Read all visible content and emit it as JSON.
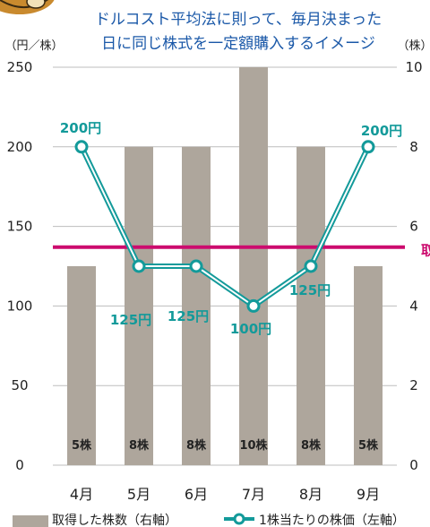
{
  "title_lines": [
    "ドルコスト平均法に則って、毎月決まった",
    "日に同じ株式を一定額購入するイメージ"
  ],
  "reference_line_label": "取",
  "chart_data": {
    "type": "bar",
    "categories": [
      "4月",
      "5月",
      "6月",
      "7月",
      "8月",
      "9月"
    ],
    "series": [
      {
        "name": "取得した株数（右軸）",
        "type": "bar",
        "axis": "right",
        "values": [
          5,
          8,
          8,
          10,
          8,
          5
        ],
        "labels": [
          "5株",
          "8株",
          "8株",
          "10株",
          "8株",
          "5株"
        ],
        "color": "#aea69c"
      },
      {
        "name": "1株当たりの株価（左軸）",
        "type": "line",
        "axis": "left",
        "values": [
          200,
          125,
          125,
          100,
          125,
          200
        ],
        "labels": [
          "200円",
          "125円",
          "125円",
          "100円",
          "125円",
          "200円"
        ],
        "color": "#139a9a"
      }
    ],
    "reference_line": {
      "value": 137,
      "axis": "left",
      "color": "#cc0b6e"
    },
    "y_left": {
      "label": "（円／株）",
      "ylim": [
        0,
        250
      ],
      "ticks": [
        "0",
        "50",
        "100",
        "150",
        "200",
        "250"
      ]
    },
    "y_right": {
      "label": "（株）",
      "ylim": [
        0,
        10
      ],
      "ticks": [
        "0",
        "2",
        "4",
        "6",
        "8",
        "10"
      ]
    },
    "grid": true,
    "legend_position": "bottom",
    "legend": [
      "取得した株数（右軸）",
      "1株当たりの株価（左軸）"
    ]
  }
}
